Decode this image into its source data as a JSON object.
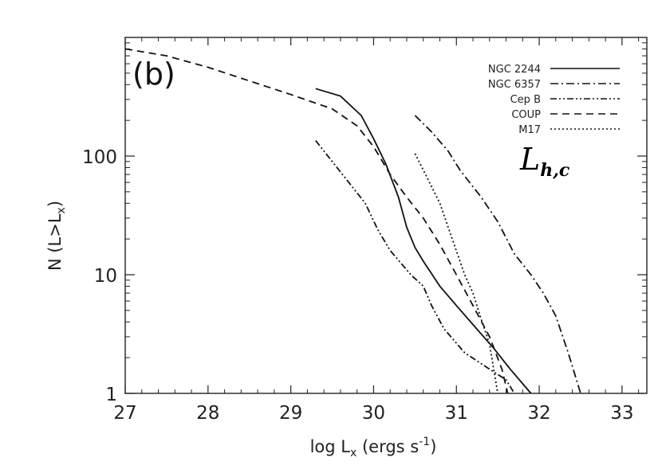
{
  "chart_data": {
    "type": "line",
    "panel_label": "(b)",
    "annotation": {
      "main": "L",
      "sub": "h,c"
    },
    "xlabel": {
      "prefix": "log L",
      "subscript": "x",
      "suffix": " (ergs s",
      "superscript": "-1",
      "close": ")"
    },
    "ylabel": {
      "prefix": "N (L>L",
      "subscript": "x",
      "close": ")"
    },
    "xlim": [
      27,
      33.3
    ],
    "ylim": [
      1,
      1000
    ],
    "yscale": "log",
    "xticks": [
      27,
      28,
      29,
      30,
      31,
      32,
      33
    ],
    "xtick_labels": [
      "27",
      "28",
      "29",
      "30",
      "31",
      "32",
      "33"
    ],
    "yticks": [
      1,
      10,
      100
    ],
    "ytick_labels": [
      "1",
      "10",
      "100"
    ],
    "legend_position": "top-right",
    "series": [
      {
        "name": "NGC 2244",
        "dash": "solid",
        "points": [
          [
            29.3,
            370
          ],
          [
            29.6,
            320
          ],
          [
            29.85,
            220
          ],
          [
            30.0,
            140
          ],
          [
            30.15,
            85
          ],
          [
            30.3,
            45
          ],
          [
            30.4,
            25
          ],
          [
            30.5,
            17
          ],
          [
            30.6,
            13
          ],
          [
            30.8,
            8
          ],
          [
            31.0,
            5.5
          ],
          [
            31.2,
            3.8
          ],
          [
            31.45,
            2.4
          ],
          [
            31.65,
            1.6
          ],
          [
            31.9,
            1.0
          ]
        ]
      },
      {
        "name": "NGC 6357",
        "dash": "dashdot",
        "points": [
          [
            30.5,
            220
          ],
          [
            30.7,
            160
          ],
          [
            30.9,
            110
          ],
          [
            31.05,
            75
          ],
          [
            31.3,
            45
          ],
          [
            31.5,
            28
          ],
          [
            31.7,
            15
          ],
          [
            31.9,
            10
          ],
          [
            32.05,
            7
          ],
          [
            32.2,
            4.5
          ],
          [
            32.35,
            2.2
          ],
          [
            32.5,
            1.0
          ]
        ]
      },
      {
        "name": "Cep B",
        "dash": "dashdotdot",
        "points": [
          [
            29.3,
            135
          ],
          [
            29.5,
            90
          ],
          [
            29.7,
            60
          ],
          [
            29.9,
            40
          ],
          [
            30.05,
            24
          ],
          [
            30.2,
            16
          ],
          [
            30.45,
            10
          ],
          [
            30.6,
            8
          ],
          [
            30.7,
            5.5
          ],
          [
            30.85,
            3.5
          ],
          [
            31.1,
            2.2
          ],
          [
            31.4,
            1.6
          ],
          [
            31.6,
            1.3
          ],
          [
            31.7,
            1.0
          ]
        ]
      },
      {
        "name": "COUP",
        "dash": "dashed",
        "points": [
          [
            27.0,
            800
          ],
          [
            27.5,
            700
          ],
          [
            28.0,
            560
          ],
          [
            28.5,
            430
          ],
          [
            29.0,
            330
          ],
          [
            29.5,
            250
          ],
          [
            29.8,
            180
          ],
          [
            30.0,
            120
          ],
          [
            30.2,
            70
          ],
          [
            30.4,
            45
          ],
          [
            30.6,
            30
          ],
          [
            30.8,
            18
          ],
          [
            31.0,
            10
          ],
          [
            31.2,
            5.5
          ],
          [
            31.4,
            3.0
          ],
          [
            31.55,
            1.6
          ],
          [
            31.62,
            1.0
          ]
        ]
      },
      {
        "name": "M17",
        "dash": "dotted",
        "points": [
          [
            30.5,
            105
          ],
          [
            30.65,
            65
          ],
          [
            30.8,
            40
          ],
          [
            30.95,
            20
          ],
          [
            31.1,
            10
          ],
          [
            31.2,
            7
          ],
          [
            31.3,
            4.2
          ],
          [
            31.4,
            2.6
          ],
          [
            31.45,
            1.6
          ],
          [
            31.5,
            1.0
          ]
        ]
      }
    ]
  }
}
